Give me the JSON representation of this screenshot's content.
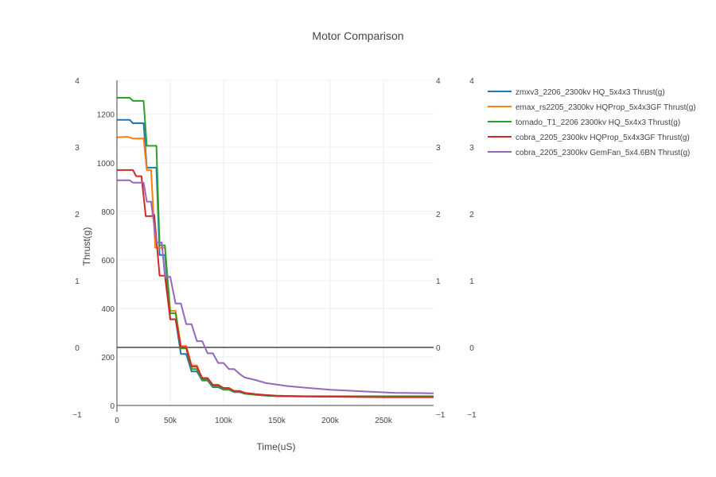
{
  "chart_data": {
    "type": "line",
    "title": "Motor Comparison",
    "xlabel": "Time(uS)",
    "ylabel": "Thrust(g)",
    "xlim": [
      0,
      297000
    ],
    "ylim": [
      0,
      1340
    ],
    "x_ticks": [
      {
        "value": 0,
        "label": "0"
      },
      {
        "value": 50000,
        "label": "50k"
      },
      {
        "value": 100000,
        "label": "100k"
      },
      {
        "value": 150000,
        "label": "150k"
      },
      {
        "value": 200000,
        "label": "200k"
      },
      {
        "value": 250000,
        "label": "250k"
      }
    ],
    "y_ticks": [
      {
        "value": 0,
        "label": "0"
      },
      {
        "value": 200,
        "label": "200"
      },
      {
        "value": 400,
        "label": "400"
      },
      {
        "value": 600,
        "label": "600"
      },
      {
        "value": 800,
        "label": "800"
      },
      {
        "value": 1000,
        "label": "1000"
      },
      {
        "value": 1200,
        "label": "1200"
      }
    ],
    "secondary_axes": {
      "range": [
        -1,
        4
      ],
      "ticks": [
        {
          "value": -1,
          "label": "−1"
        },
        {
          "value": 0,
          "label": "0"
        },
        {
          "value": 1,
          "label": "1"
        },
        {
          "value": 2,
          "label": "2"
        },
        {
          "value": 3,
          "label": "3"
        },
        {
          "value": 4,
          "label": "4"
        }
      ],
      "zero_line": true
    },
    "grid": true,
    "legend_position": "top-right",
    "series": [
      {
        "name": "zmxv3_2206_2300kv HQ_5x4x3 Thrust(g)",
        "color": "#1f77b4",
        "x": [
          0,
          12000,
          15000,
          25000,
          28000,
          32000,
          37000,
          40000,
          45000,
          50000,
          55000,
          60000,
          65000,
          70000,
          75000,
          80000,
          85000,
          90000,
          95000,
          100000,
          105000,
          110000,
          115000,
          120000,
          130000,
          140000,
          150000,
          170000,
          200000,
          250000,
          297000
        ],
        "y": [
          1177,
          1177,
          1163,
          1163,
          980,
          980,
          980,
          620,
          620,
          355,
          355,
          212,
          212,
          140,
          140,
          103,
          103,
          75,
          75,
          65,
          65,
          55,
          55,
          48,
          44,
          40,
          38,
          37,
          36,
          35,
          35
        ]
      },
      {
        "name": "emax_rs2205_2300kv HQProp_5x4x3GF Thrust(g)",
        "color": "#ff7f0e",
        "x": [
          0,
          10000,
          15000,
          25000,
          28000,
          32000,
          36000,
          40000,
          45000,
          50000,
          55000,
          60000,
          65000,
          70000,
          75000,
          80000,
          85000,
          90000,
          95000,
          100000,
          105000,
          110000,
          115000,
          120000,
          130000,
          140000,
          150000,
          170000,
          200000,
          250000,
          297000
        ],
        "y": [
          1105,
          1107,
          1100,
          1100,
          970,
          970,
          650,
          650,
          650,
          390,
          390,
          245,
          245,
          165,
          165,
          108,
          108,
          80,
          80,
          70,
          70,
          58,
          58,
          50,
          46,
          42,
          40,
          38,
          37,
          36,
          36
        ]
      },
      {
        "name": "tornado_T1_2206 2300kv HQ_5x4x3 Thrust(g)",
        "color": "#2ca02c",
        "x": [
          0,
          12000,
          15000,
          25000,
          28000,
          32000,
          37000,
          40000,
          45000,
          50000,
          55000,
          60000,
          65000,
          70000,
          75000,
          80000,
          85000,
          90000,
          95000,
          100000,
          105000,
          110000,
          115000,
          120000,
          130000,
          140000,
          150000,
          170000,
          200000,
          250000,
          297000
        ],
        "y": [
          1268,
          1268,
          1255,
          1255,
          1070,
          1070,
          1070,
          660,
          660,
          380,
          380,
          235,
          235,
          150,
          150,
          106,
          106,
          80,
          80,
          66,
          66,
          56,
          56,
          48,
          44,
          41,
          39,
          38,
          38,
          38,
          38
        ]
      },
      {
        "name": "cobra_2205_2300kv HQProp_5x4x3GF Thrust(g)",
        "color": "#d62728",
        "x": [
          0,
          15000,
          18000,
          23000,
          27000,
          32000,
          35000,
          40000,
          45000,
          50000,
          55000,
          60000,
          65000,
          70000,
          75000,
          80000,
          85000,
          90000,
          95000,
          100000,
          105000,
          110000,
          115000,
          120000,
          130000,
          140000,
          150000,
          170000,
          200000,
          250000,
          297000
        ],
        "y": [
          970,
          970,
          945,
          945,
          780,
          780,
          785,
          535,
          535,
          355,
          355,
          240,
          240,
          160,
          160,
          113,
          113,
          85,
          85,
          72,
          72,
          60,
          60,
          52,
          47,
          43,
          40,
          38,
          36,
          34,
          34
        ]
      },
      {
        "name": "cobra_2205_2300kv GemFan_5x4.6BN Thrust(g)",
        "color": "#9467bd",
        "x": [
          0,
          12000,
          15000,
          25000,
          28000,
          32000,
          37000,
          42000,
          45000,
          50000,
          55000,
          60000,
          65000,
          70000,
          75000,
          80000,
          85000,
          90000,
          95000,
          100000,
          105000,
          110000,
          115000,
          120000,
          130000,
          140000,
          160000,
          180000,
          200000,
          230000,
          260000,
          297000
        ],
        "y": [
          928,
          928,
          918,
          918,
          840,
          840,
          672,
          672,
          530,
          530,
          420,
          420,
          335,
          335,
          265,
          265,
          215,
          215,
          175,
          175,
          150,
          150,
          130,
          115,
          105,
          92,
          80,
          72,
          65,
          58,
          52,
          50
        ]
      }
    ]
  }
}
